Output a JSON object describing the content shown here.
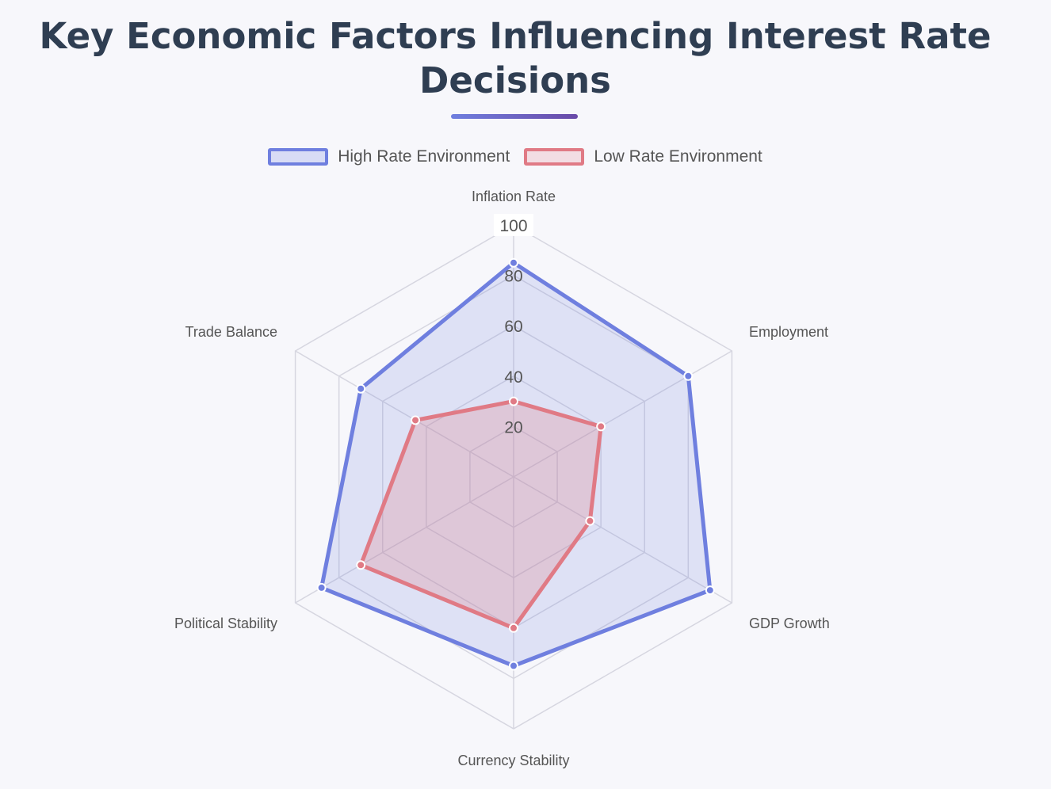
{
  "title": "Key Economic Factors Influencing Interest Rate Decisions",
  "chart_data": {
    "type": "radar",
    "categories": [
      "Inflation Rate",
      "Employment",
      "GDP Growth",
      "Currency Stability",
      "Political Stability",
      "Trade Balance"
    ],
    "radial_range": [
      0,
      100
    ],
    "radial_ticks": [
      "20",
      "40",
      "60",
      "80",
      "100"
    ],
    "grid": true,
    "legend_position": "top-center",
    "series": [
      {
        "name": "High Rate Environment",
        "values": [
          85,
          80,
          90,
          75,
          88,
          70
        ],
        "color": "#6f7fdf",
        "fill": "rgba(111,127,223,0.18)"
      },
      {
        "name": "Low Rate Environment",
        "values": [
          30,
          40,
          35,
          60,
          70,
          45
        ],
        "color": "#e07a85",
        "fill": "rgba(224,122,133,0.25)"
      }
    ]
  }
}
